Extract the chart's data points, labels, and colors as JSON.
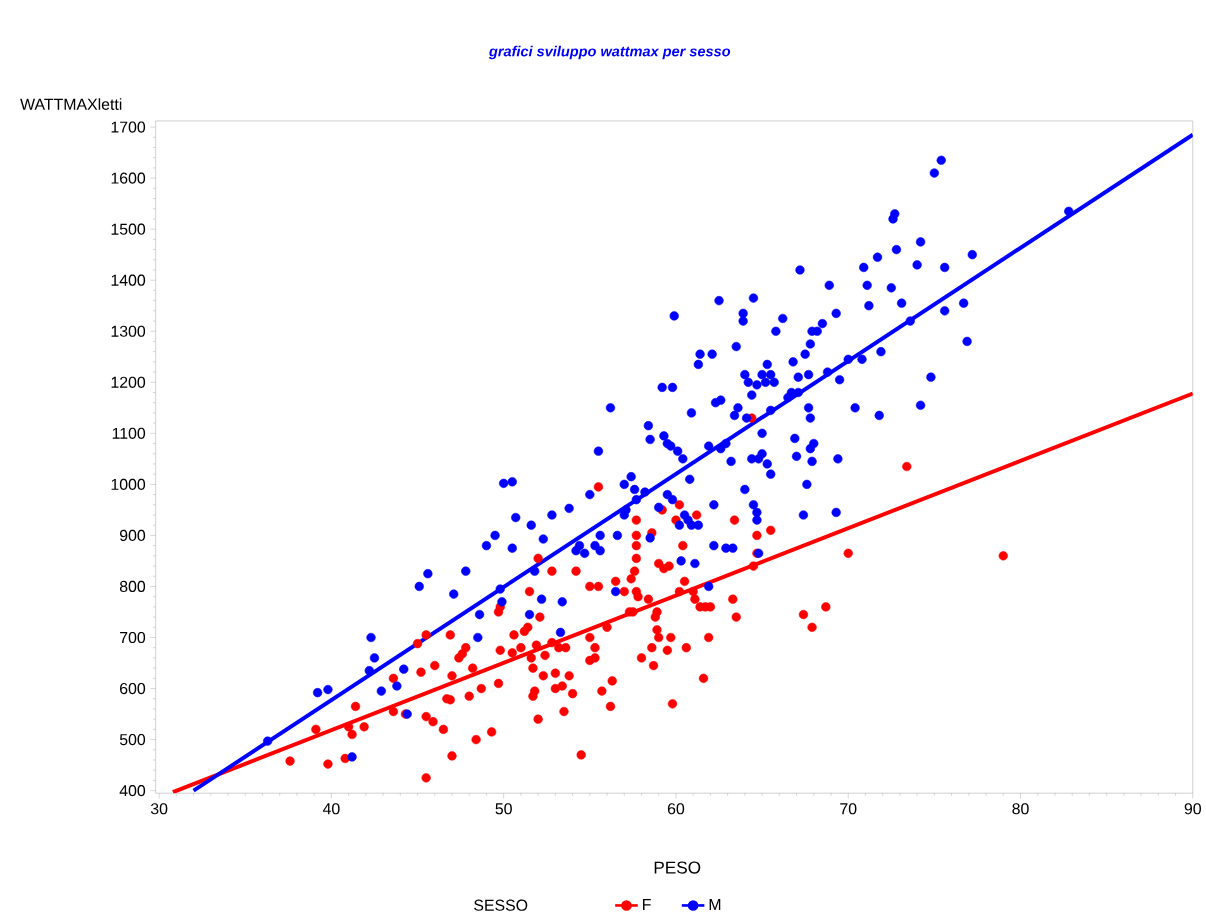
{
  "chart_data": {
    "type": "scatter",
    "title": "grafici sviluppo wattmax per sesso",
    "xlabel": "PESO",
    "ylabel": "WATTMAXletti",
    "legend_title": "SESSO",
    "legend": "bottom",
    "xlim": [
      29.8,
      90
    ],
    "ylim": [
      395,
      1712
    ],
    "xticks": [
      30,
      40,
      50,
      60,
      70,
      80,
      90
    ],
    "yticks": [
      400,
      500,
      600,
      700,
      800,
      900,
      1000,
      1100,
      1200,
      1300,
      1400,
      1500,
      1600,
      1700
    ],
    "series": [
      {
        "name": "F",
        "type": "scatter",
        "marker": "circle",
        "color": "#ff0000",
        "x": [
          37.6,
          39.1,
          39.8,
          40.8,
          41.0,
          41.2,
          41.4,
          41.9,
          43.6,
          43.6,
          44.3,
          45.0,
          45.2,
          45.5,
          45.5,
          45.5,
          45.9,
          46.0,
          46.5,
          46.7,
          46.9,
          46.9,
          47.0,
          47.0,
          47.4,
          47.6,
          47.8,
          48.0,
          48.2,
          48.4,
          48.7,
          49.3,
          49.7,
          49.7,
          49.8,
          49.8,
          50.5,
          50.6,
          51.0,
          51.2,
          51.4,
          51.5,
          51.6,
          51.7,
          51.7,
          51.8,
          51.9,
          52.0,
          52.0,
          52.1,
          52.3,
          52.4,
          52.8,
          52.8,
          53.0,
          53.0,
          53.2,
          53.4,
          53.5,
          53.6,
          53.8,
          54.0,
          54.2,
          54.5,
          55.0,
          55.0,
          55.0,
          55.3,
          55.3,
          55.5,
          55.5,
          55.7,
          56.0,
          56.2,
          56.3,
          56.5,
          57.0,
          57.3,
          57.4,
          57.5,
          57.6,
          57.7,
          57.7,
          57.7,
          57.7,
          57.7,
          57.8,
          58.0,
          58.4,
          58.6,
          58.6,
          58.7,
          58.8,
          58.9,
          58.9,
          59.0,
          59.0,
          59.2,
          59.3,
          59.5,
          59.6,
          59.7,
          59.8,
          60.0,
          60.2,
          60.2,
          60.4,
          60.5,
          60.6,
          61.0,
          61.1,
          61.2,
          61.4,
          61.6,
          61.7,
          61.9,
          62.0,
          63.3,
          63.4,
          63.5,
          64.4,
          64.5,
          64.7,
          65.5,
          64.7,
          67.4,
          67.9,
          68.7,
          70.0,
          73.4,
          79.0
        ],
        "values": [
          458,
          520,
          452,
          463,
          525,
          510,
          565,
          525,
          620,
          555,
          550,
          688,
          632,
          705,
          425,
          545,
          535,
          645,
          520,
          580,
          578,
          705,
          625,
          468,
          660,
          668,
          680,
          585,
          640,
          500,
          600,
          515,
          610,
          750,
          675,
          760,
          670,
          705,
          680,
          712,
          720,
          790,
          660,
          640,
          585,
          595,
          685,
          540,
          855,
          740,
          625,
          665,
          830,
          690,
          600,
          630,
          680,
          605,
          555,
          680,
          625,
          590,
          830,
          470,
          655,
          700,
          800,
          680,
          660,
          995,
          800,
          595,
          720,
          565,
          615,
          810,
          790,
          750,
          815,
          750,
          830,
          790,
          900,
          930,
          880,
          855,
          780,
          660,
          775,
          905,
          680,
          645,
          740,
          715,
          750,
          700,
          845,
          950,
          835,
          675,
          840,
          700,
          570,
          930,
          790,
          960,
          880,
          810,
          680,
          790,
          775,
          940,
          760,
          620,
          760,
          700,
          760,
          775,
          930,
          740,
          1130,
          840,
          900,
          910,
          865,
          745,
          720,
          760,
          865,
          1035,
          860
        ]
      },
      {
        "name": "M",
        "type": "scatter",
        "marker": "circle",
        "color": "#0000ff",
        "x": [
          36.3,
          39.2,
          39.8,
          41.2,
          42.2,
          42.3,
          42.5,
          42.9,
          43.8,
          44.2,
          44.4,
          45.1,
          45.6,
          47.1,
          47.8,
          48.5,
          48.6,
          49.0,
          49.5,
          49.8,
          49.9,
          50.0,
          50.5,
          50.5,
          50.7,
          51.5,
          51.6,
          51.8,
          52.2,
          52.3,
          52.8,
          53.4,
          53.3,
          53.8,
          54.2,
          54.4,
          54.7,
          55.0,
          55.3,
          55.5,
          55.6,
          55.6,
          56.2,
          56.5,
          56.6,
          57.0,
          57.0,
          57.1,
          57.4,
          57.6,
          57.7,
          58.2,
          58.4,
          58.5,
          58.5,
          59.0,
          59.2,
          59.3,
          59.5,
          59.5,
          59.7,
          59.8,
          59.8,
          59.9,
          60.1,
          60.2,
          60.4,
          60.3,
          60.5,
          60.7,
          60.8,
          60.9,
          60.9,
          61.1,
          61.3,
          61.3,
          61.4,
          61.9,
          61.9,
          62.1,
          62.2,
          62.2,
          62.3,
          62.5,
          62.6,
          62.6,
          62.9,
          62.9,
          63.2,
          63.3,
          63.4,
          63.5,
          63.6,
          63.9,
          63.9,
          64.0,
          64.0,
          64.1,
          64.2,
          64.4,
          64.4,
          64.5,
          64.5,
          64.7,
          64.7,
          64.7,
          64.8,
          64.8,
          65.0,
          65.0,
          65.0,
          65.2,
          65.3,
          65.3,
          65.5,
          65.5,
          65.5,
          65.7,
          65.8,
          66.2,
          66.5,
          66.7,
          66.8,
          66.9,
          67.0,
          67.1,
          67.1,
          67.2,
          67.4,
          67.5,
          67.6,
          67.7,
          67.7,
          67.8,
          67.8,
          67.8,
          67.9,
          67.9,
          68.0,
          68.2,
          68.5,
          68.8,
          68.9,
          69.3,
          69.3,
          69.4,
          69.5,
          70.0,
          70.4,
          70.8,
          70.9,
          71.1,
          71.2,
          71.7,
          71.8,
          71.9,
          72.5,
          72.6,
          72.7,
          72.8,
          73.1,
          73.6,
          74.0,
          74.2,
          74.2,
          74.8,
          75.0,
          75.4,
          75.6,
          75.6,
          76.7,
          76.9,
          77.2,
          82.8
        ],
        "values": [
          497,
          592,
          598,
          466,
          635,
          700,
          660,
          595,
          605,
          638,
          550,
          800,
          825,
          785,
          830,
          700,
          745,
          880,
          900,
          795,
          770,
          1002,
          1005,
          875,
          935,
          745,
          920,
          830,
          775,
          893,
          940,
          770,
          710,
          953,
          870,
          880,
          865,
          980,
          880,
          1065,
          900,
          870,
          1150,
          790,
          900,
          1000,
          940,
          950,
          1015,
          990,
          970,
          985,
          1115,
          1088,
          895,
          955,
          1190,
          1095,
          1080,
          980,
          1075,
          1190,
          970,
          1330,
          1065,
          920,
          1050,
          850,
          940,
          930,
          1010,
          920,
          1140,
          845,
          920,
          1235,
          1255,
          1075,
          800,
          1255,
          880,
          960,
          1160,
          1360,
          1165,
          1070,
          1080,
          875,
          1045,
          875,
          1135,
          1270,
          1150,
          1320,
          1335,
          1215,
          990,
          1130,
          1200,
          1050,
          1175,
          1365,
          960,
          1195,
          945,
          930,
          1050,
          865,
          1215,
          1100,
          1060,
          1200,
          1235,
          1040,
          1215,
          1145,
          1020,
          1200,
          1300,
          1325,
          1170,
          1180,
          1240,
          1090,
          1055,
          1210,
          1180,
          1420,
          940,
          1255,
          1000,
          1215,
          1150,
          1130,
          1275,
          1070,
          1045,
          1300,
          1080,
          1300,
          1315,
          1220,
          1390,
          945,
          1335,
          1050,
          1205,
          1245,
          1150,
          1245,
          1425,
          1390,
          1350,
          1445,
          1135,
          1260,
          1385,
          1520,
          1530,
          1460,
          1355,
          1320,
          1430,
          1475,
          1155,
          1210,
          1610,
          1635,
          1425,
          1340,
          1355,
          1280,
          1450,
          1535
        ]
      },
      {
        "type": "line",
        "marker": "none",
        "color": "#ff0000",
        "x": [
          30.8,
          90
        ],
        "values": [
          397,
          1178
        ]
      },
      {
        "type": "line",
        "marker": "none",
        "color": "#0000ff",
        "x": [
          32,
          90
        ],
        "values": [
          400,
          1685
        ]
      }
    ]
  }
}
